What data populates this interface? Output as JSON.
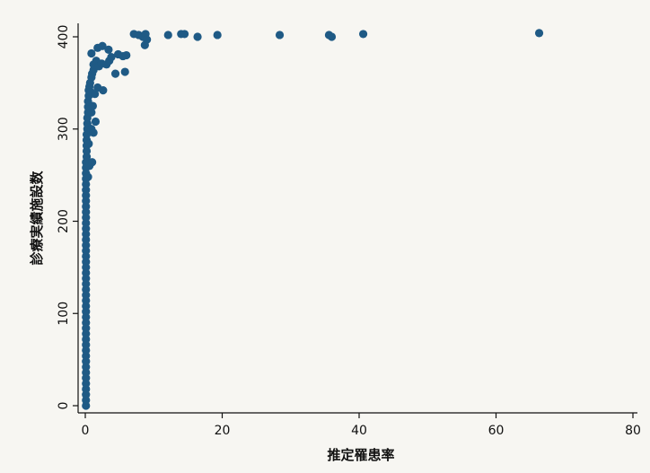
{
  "chart_data": {
    "type": "scatter",
    "title": "",
    "xlabel": "推定罹患率",
    "ylabel": "診療実績施設数",
    "xlim": [
      0,
      80
    ],
    "ylim": [
      0,
      400
    ],
    "x_ticks": [
      {
        "value": 0,
        "label": "0"
      },
      {
        "value": 20,
        "label": "20"
      },
      {
        "value": 40,
        "label": "40"
      },
      {
        "value": 60,
        "label": "60"
      },
      {
        "value": 80,
        "label": "80"
      }
    ],
    "y_ticks": [
      {
        "value": 0,
        "label": "0"
      },
      {
        "value": 100,
        "label": "100"
      },
      {
        "value": 200,
        "label": "200"
      },
      {
        "value": 300,
        "label": "300"
      },
      {
        "value": 400,
        "label": "400"
      }
    ],
    "grid": false,
    "legend": "none",
    "point_color": "#1f5a85",
    "points": [
      {
        "x": 0.1,
        "y": 0
      },
      {
        "x": 0.1,
        "y": 6
      },
      {
        "x": 0.1,
        "y": 12
      },
      {
        "x": 0.1,
        "y": 18
      },
      {
        "x": 0.1,
        "y": 24
      },
      {
        "x": 0.1,
        "y": 30
      },
      {
        "x": 0.1,
        "y": 36
      },
      {
        "x": 0.1,
        "y": 42
      },
      {
        "x": 0.1,
        "y": 48
      },
      {
        "x": 0.1,
        "y": 54
      },
      {
        "x": 0.1,
        "y": 60
      },
      {
        "x": 0.1,
        "y": 66
      },
      {
        "x": 0.1,
        "y": 72
      },
      {
        "x": 0.1,
        "y": 78
      },
      {
        "x": 0.1,
        "y": 84
      },
      {
        "x": 0.1,
        "y": 90
      },
      {
        "x": 0.1,
        "y": 96
      },
      {
        "x": 0.1,
        "y": 102
      },
      {
        "x": 0.1,
        "y": 108
      },
      {
        "x": 0.1,
        "y": 114
      },
      {
        "x": 0.1,
        "y": 120
      },
      {
        "x": 0.1,
        "y": 126
      },
      {
        "x": 0.1,
        "y": 132
      },
      {
        "x": 0.1,
        "y": 138
      },
      {
        "x": 0.1,
        "y": 144
      },
      {
        "x": 0.1,
        "y": 150
      },
      {
        "x": 0.1,
        "y": 156
      },
      {
        "x": 0.1,
        "y": 162
      },
      {
        "x": 0.1,
        "y": 168
      },
      {
        "x": 0.1,
        "y": 174
      },
      {
        "x": 0.1,
        "y": 180
      },
      {
        "x": 0.1,
        "y": 186
      },
      {
        "x": 0.1,
        "y": 192
      },
      {
        "x": 0.1,
        "y": 198
      },
      {
        "x": 0.1,
        "y": 204
      },
      {
        "x": 0.1,
        "y": 210
      },
      {
        "x": 0.1,
        "y": 216
      },
      {
        "x": 0.1,
        "y": 222
      },
      {
        "x": 0.1,
        "y": 228
      },
      {
        "x": 0.1,
        "y": 234
      },
      {
        "x": 0.1,
        "y": 240
      },
      {
        "x": 0.1,
        "y": 246
      },
      {
        "x": 0.1,
        "y": 252
      },
      {
        "x": 0.1,
        "y": 258
      },
      {
        "x": 0.1,
        "y": 264
      },
      {
        "x": 0.2,
        "y": 270
      },
      {
        "x": 0.2,
        "y": 276
      },
      {
        "x": 0.2,
        "y": 282
      },
      {
        "x": 0.2,
        "y": 288
      },
      {
        "x": 0.2,
        "y": 294
      },
      {
        "x": 0.3,
        "y": 300
      },
      {
        "x": 0.3,
        "y": 306
      },
      {
        "x": 0.3,
        "y": 312
      },
      {
        "x": 0.4,
        "y": 318
      },
      {
        "x": 0.4,
        "y": 324
      },
      {
        "x": 0.4,
        "y": 330
      },
      {
        "x": 0.5,
        "y": 336
      },
      {
        "x": 0.5,
        "y": 342
      },
      {
        "x": 0.6,
        "y": 346
      },
      {
        "x": 0.7,
        "y": 350
      },
      {
        "x": 0.9,
        "y": 356
      },
      {
        "x": 1.0,
        "y": 360
      },
      {
        "x": 1.2,
        "y": 364
      },
      {
        "x": 0.4,
        "y": 248
      },
      {
        "x": 0.6,
        "y": 260
      },
      {
        "x": 1.0,
        "y": 264
      },
      {
        "x": 0.5,
        "y": 284
      },
      {
        "x": 0.4,
        "y": 302
      },
      {
        "x": 0.9,
        "y": 300
      },
      {
        "x": 1.2,
        "y": 296
      },
      {
        "x": 1.5,
        "y": 308
      },
      {
        "x": 0.9,
        "y": 318
      },
      {
        "x": 1.1,
        "y": 325
      },
      {
        "x": 0.8,
        "y": 340
      },
      {
        "x": 1.4,
        "y": 338
      },
      {
        "x": 1.8,
        "y": 345
      },
      {
        "x": 2.6,
        "y": 342
      },
      {
        "x": 1.2,
        "y": 370
      },
      {
        "x": 1.6,
        "y": 374
      },
      {
        "x": 2.0,
        "y": 368
      },
      {
        "x": 2.4,
        "y": 371
      },
      {
        "x": 3.1,
        "y": 370
      },
      {
        "x": 3.5,
        "y": 374
      },
      {
        "x": 3.8,
        "y": 378
      },
      {
        "x": 0.9,
        "y": 382
      },
      {
        "x": 1.8,
        "y": 388
      },
      {
        "x": 2.5,
        "y": 390
      },
      {
        "x": 3.4,
        "y": 386
      },
      {
        "x": 4.8,
        "y": 381
      },
      {
        "x": 5.5,
        "y": 379
      },
      {
        "x": 6.0,
        "y": 380
      },
      {
        "x": 5.8,
        "y": 362
      },
      {
        "x": 4.4,
        "y": 360
      },
      {
        "x": 7.1,
        "y": 403
      },
      {
        "x": 7.8,
        "y": 402
      },
      {
        "x": 8.4,
        "y": 400
      },
      {
        "x": 8.8,
        "y": 403
      },
      {
        "x": 9.0,
        "y": 397
      },
      {
        "x": 8.7,
        "y": 391
      },
      {
        "x": 12.1,
        "y": 402
      },
      {
        "x": 14.0,
        "y": 403
      },
      {
        "x": 14.5,
        "y": 403
      },
      {
        "x": 16.4,
        "y": 400
      },
      {
        "x": 19.3,
        "y": 402
      },
      {
        "x": 28.4,
        "y": 402
      },
      {
        "x": 35.6,
        "y": 402
      },
      {
        "x": 36.0,
        "y": 400
      },
      {
        "x": 40.6,
        "y": 403
      },
      {
        "x": 66.3,
        "y": 404
      }
    ]
  }
}
